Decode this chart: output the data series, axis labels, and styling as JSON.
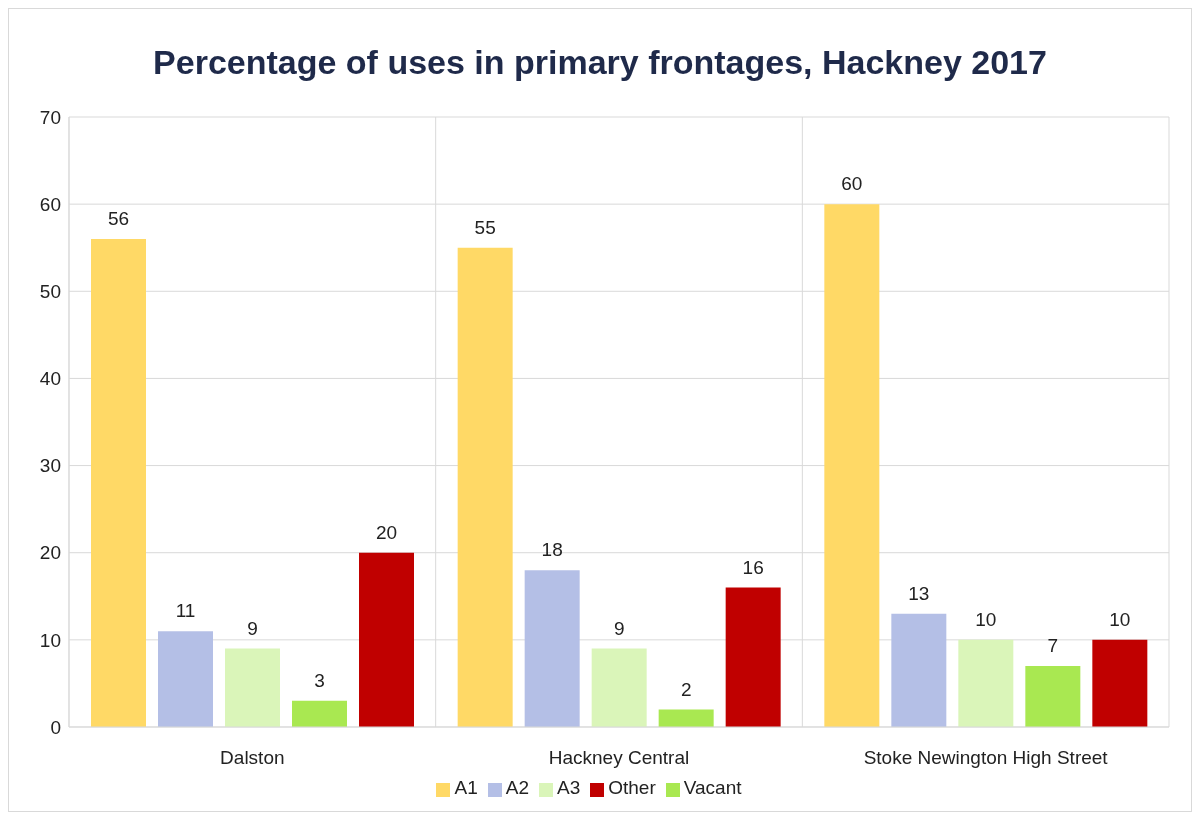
{
  "chart_data": {
    "type": "bar",
    "title": "Percentage of uses in primary frontages, Hackney 2017",
    "categories": [
      "Dalston",
      "Hackney Central",
      "Stoke Newington High Street"
    ],
    "series": [
      {
        "name": "A1",
        "color": "#ffd966",
        "values": [
          56,
          55,
          60
        ]
      },
      {
        "name": "A2",
        "color": "#b4bfe6",
        "values": [
          11,
          18,
          13
        ]
      },
      {
        "name": "A3",
        "color": "#daf5b9",
        "values": [
          9,
          9,
          10
        ]
      },
      {
        "name": "Vacant",
        "color": "#a9e851",
        "values": [
          3,
          2,
          7
        ]
      },
      {
        "name": "Other",
        "color": "#c00000",
        "values": [
          20,
          16,
          10
        ]
      }
    ],
    "ylim": [
      0,
      70
    ],
    "yticks": [
      0,
      10,
      20,
      30,
      40,
      50,
      60,
      70
    ],
    "grid": true,
    "legend": "bottom",
    "data_labels": true
  }
}
